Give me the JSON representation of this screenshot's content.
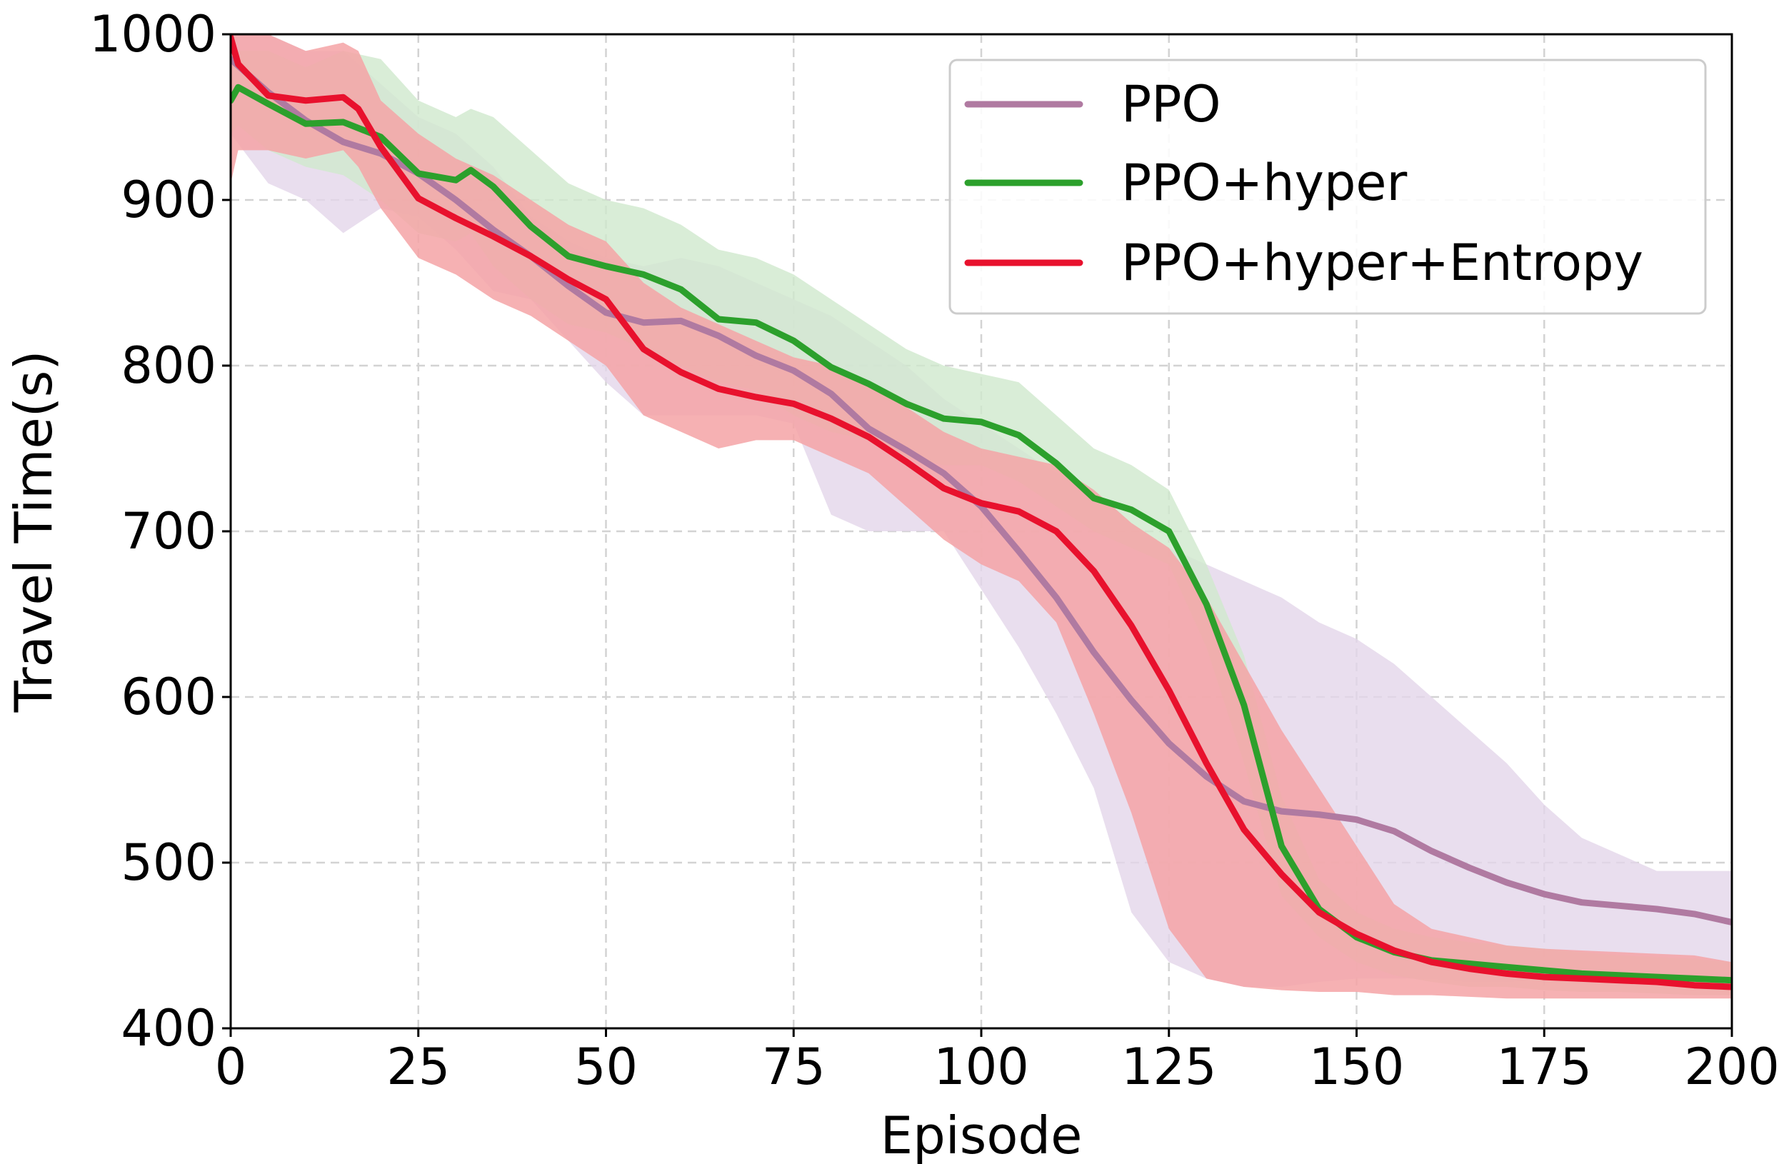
{
  "chart_data": {
    "type": "line",
    "xlabel": "Episode",
    "ylabel": "Travel Time(s)",
    "xlim": [
      0,
      200
    ],
    "ylim": [
      400,
      1000
    ],
    "xticks": [
      0,
      25,
      50,
      75,
      100,
      125,
      150,
      175,
      200
    ],
    "yticks": [
      400,
      500,
      600,
      700,
      800,
      900,
      1000
    ],
    "grid": true,
    "legend_position": "top-right",
    "series": [
      {
        "name": "PPO",
        "color": "#b07aa1",
        "band_color": "#e4d6ea",
        "x": [
          0,
          5,
          10,
          15,
          20,
          25,
          30,
          35,
          40,
          45,
          50,
          55,
          60,
          65,
          70,
          75,
          80,
          85,
          90,
          95,
          100,
          105,
          110,
          115,
          120,
          125,
          130,
          135,
          140,
          145,
          150,
          155,
          160,
          165,
          170,
          175,
          180,
          185,
          190,
          195,
          200
        ],
        "values": [
          985,
          965,
          948,
          935,
          928,
          916,
          900,
          882,
          866,
          848,
          832,
          826,
          827,
          818,
          806,
          797,
          783,
          762,
          749,
          735,
          715,
          688,
          660,
          627,
          598,
          572,
          552,
          537,
          531,
          529,
          526,
          519,
          507,
          497,
          488,
          481,
          476,
          474,
          472,
          469,
          464
        ],
        "band_lower": [
          940,
          910,
          900,
          880,
          895,
          890,
          870,
          845,
          840,
          815,
          790,
          770,
          770,
          770,
          770,
          765,
          710,
          700,
          700,
          700,
          665,
          630,
          590,
          545,
          470,
          440,
          430,
          425,
          425,
          428,
          430,
          430,
          430,
          428,
          428,
          430,
          428,
          428,
          428,
          428,
          430
        ],
        "band_upper": [
          1000,
          1000,
          990,
          990,
          970,
          950,
          940,
          920,
          890,
          875,
          865,
          860,
          865,
          860,
          850,
          840,
          830,
          815,
          800,
          780,
          765,
          750,
          735,
          725,
          705,
          690,
          680,
          670,
          660,
          645,
          635,
          620,
          600,
          580,
          560,
          535,
          515,
          505,
          495,
          495,
          495
        ]
      },
      {
        "name": "PPO+hyper",
        "color": "#2ca02c",
        "band_color": "#cfe9cd",
        "x": [
          0,
          1,
          5,
          10,
          15,
          20,
          25,
          30,
          32,
          35,
          40,
          45,
          50,
          55,
          60,
          65,
          70,
          75,
          80,
          85,
          90,
          95,
          100,
          105,
          110,
          115,
          120,
          125,
          130,
          135,
          140,
          145,
          150,
          155,
          160,
          165,
          170,
          175,
          180,
          185,
          190,
          195,
          200
        ],
        "values": [
          960,
          968,
          958,
          946,
          947,
          938,
          916,
          912,
          918,
          908,
          884,
          866,
          860,
          855,
          846,
          828,
          826,
          815,
          799,
          789,
          777,
          768,
          766,
          758,
          741,
          720,
          713,
          700,
          656,
          595,
          510,
          472,
          455,
          446,
          441,
          439,
          437,
          435,
          433,
          432,
          431,
          430,
          429
        ],
        "band_lower": [
          940,
          945,
          930,
          920,
          915,
          900,
          880,
          875,
          880,
          860,
          840,
          825,
          820,
          810,
          800,
          790,
          785,
          770,
          760,
          755,
          745,
          740,
          740,
          730,
          715,
          700,
          690,
          680,
          630,
          560,
          480,
          455,
          440,
          432,
          428,
          425,
          425,
          423,
          422,
          422,
          421,
          420,
          420
        ],
        "band_upper": [
          985,
          990,
          990,
          980,
          990,
          985,
          960,
          950,
          955,
          950,
          930,
          910,
          900,
          895,
          885,
          870,
          865,
          855,
          840,
          825,
          810,
          800,
          795,
          790,
          770,
          750,
          740,
          725,
          680,
          625,
          540,
          490,
          470,
          460,
          455,
          452,
          450,
          448,
          446,
          444,
          443,
          442,
          440
        ]
      },
      {
        "name": "PPO+hyper+Entropy",
        "color": "#e8112d",
        "band_color": "#f5a3a6",
        "x": [
          0,
          1,
          5,
          10,
          15,
          17,
          20,
          25,
          30,
          35,
          40,
          45,
          50,
          55,
          60,
          65,
          70,
          75,
          80,
          85,
          90,
          95,
          100,
          105,
          110,
          115,
          120,
          125,
          130,
          135,
          140,
          145,
          150,
          155,
          160,
          165,
          170,
          175,
          180,
          185,
          190,
          195,
          200
        ],
        "values": [
          998,
          982,
          963,
          960,
          962,
          955,
          932,
          901,
          889,
          878,
          866,
          852,
          840,
          810,
          796,
          786,
          781,
          777,
          768,
          757,
          742,
          726,
          717,
          712,
          700,
          676,
          643,
          604,
          560,
          520,
          493,
          470,
          457,
          447,
          440,
          436,
          433,
          431,
          430,
          429,
          428,
          426,
          425
        ],
        "band_lower": [
          910,
          930,
          930,
          925,
          930,
          920,
          895,
          865,
          855,
          840,
          830,
          815,
          800,
          770,
          760,
          750,
          755,
          755,
          745,
          735,
          715,
          695,
          680,
          670,
          645,
          590,
          530,
          460,
          430,
          425,
          423,
          422,
          422,
          420,
          420,
          419,
          418,
          418,
          418,
          418,
          418,
          418,
          418
        ],
        "band_upper": [
          1000,
          1000,
          1000,
          990,
          995,
          990,
          960,
          940,
          925,
          915,
          900,
          885,
          875,
          850,
          835,
          825,
          815,
          805,
          800,
          790,
          775,
          760,
          750,
          745,
          740,
          725,
          705,
          690,
          660,
          620,
          580,
          545,
          510,
          475,
          460,
          455,
          450,
          448,
          447,
          446,
          445,
          444,
          440
        ]
      }
    ]
  }
}
